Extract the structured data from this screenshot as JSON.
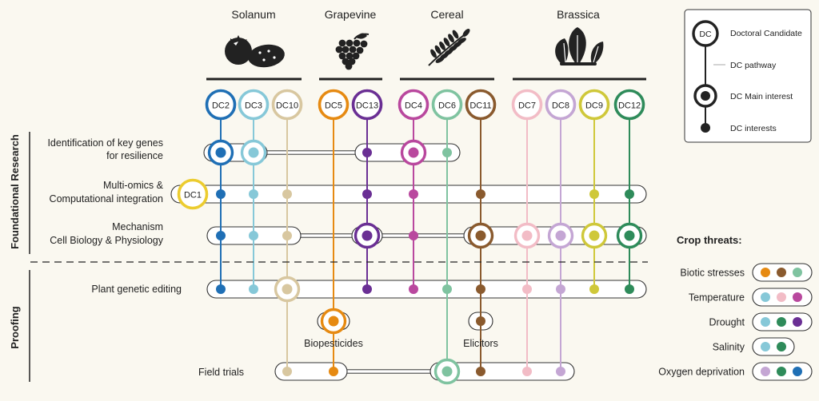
{
  "crops": [
    "Solanum",
    "Grapevine",
    "Cereal",
    "Brassica"
  ],
  "crop_icons": [
    "tomato-potato-icon",
    "grape-icon",
    "wheat-icon",
    "leafy-brassica-icon"
  ],
  "dcs": [
    {
      "id": "DC2",
      "color": "#1f6fb5"
    },
    {
      "id": "DC3",
      "color": "#86c8d8"
    },
    {
      "id": "DC10",
      "color": "#d8c7a0"
    },
    {
      "id": "DC5",
      "color": "#e68a12"
    },
    {
      "id": "DC13",
      "color": "#6a2f94"
    },
    {
      "id": "DC4",
      "color": "#b9489e"
    },
    {
      "id": "DC6",
      "color": "#7fc3a0"
    },
    {
      "id": "DC11",
      "color": "#8a5a2e"
    },
    {
      "id": "DC7",
      "color": "#f2bcc6"
    },
    {
      "id": "DC8",
      "color": "#c4a6d4"
    },
    {
      "id": "DC9",
      "color": "#cfc83a"
    },
    {
      "id": "DC12",
      "color": "#2e8b5a"
    }
  ],
  "dc1": {
    "id": "DC1",
    "color": "#eccc2f"
  },
  "sections": {
    "top": "Foundational Research",
    "bottom": "Proofing"
  },
  "rows": [
    {
      "label": [
        "Identification of key genes",
        "for resilience"
      ],
      "main": [
        "DC2",
        "DC3",
        "DC4"
      ],
      "dots": [
        "DC13",
        "DC6"
      ]
    },
    {
      "label": [
        "Multi-omics &",
        "Computational integration"
      ],
      "main": [
        "DC1"
      ],
      "dots": [
        "DC2",
        "DC3",
        "DC10",
        "DC13",
        "DC4",
        "DC11",
        "DC9",
        "DC12"
      ]
    },
    {
      "label": [
        "Mechanism",
        "Cell Biology & Physiology"
      ],
      "main": [
        "DC13",
        "DC11",
        "DC7",
        "DC8",
        "DC9",
        "DC12"
      ],
      "dots": [
        "DC2",
        "DC3",
        "DC10",
        "DC4"
      ]
    },
    {
      "label": [
        "Plant genetic editing"
      ],
      "main": [
        "DC10"
      ],
      "dots": [
        "DC2",
        "DC3",
        "DC13",
        "DC4",
        "DC6",
        "DC11",
        "DC7",
        "DC8",
        "DC9",
        "DC12"
      ]
    },
    {
      "label": [
        "Biopesticides"
      ],
      "main": [
        "DC5"
      ],
      "dots": []
    },
    {
      "label": [
        "Elicitors"
      ],
      "main": [],
      "dots": [
        "DC11"
      ]
    },
    {
      "label": [
        "Field trials"
      ],
      "main": [
        "DC6"
      ],
      "dots": [
        "DC10",
        "DC5",
        "DC11",
        "DC7",
        "DC8"
      ]
    }
  ],
  "legend": {
    "candidate": "DC",
    "candidate_label": "Doctoral Candidate",
    "pathway": "DC pathway",
    "main_interest": "DC Main interest",
    "interests": "DC interests"
  },
  "threats": {
    "title": "Crop threats:",
    "items": [
      {
        "label": "Biotic stresses",
        "dcs": [
          "DC5",
          "DC11",
          "DC6"
        ]
      },
      {
        "label": "Temperature",
        "dcs": [
          "DC3",
          "DC7",
          "DC4"
        ]
      },
      {
        "label": "Drought",
        "dcs": [
          "DC3",
          "DC12",
          "DC13"
        ]
      },
      {
        "label": "Salinity",
        "dcs": [
          "DC3",
          "DC12"
        ]
      },
      {
        "label": "Oxygen deprivation",
        "dcs": [
          "DC8",
          "DC12",
          "DC2"
        ]
      }
    ]
  }
}
